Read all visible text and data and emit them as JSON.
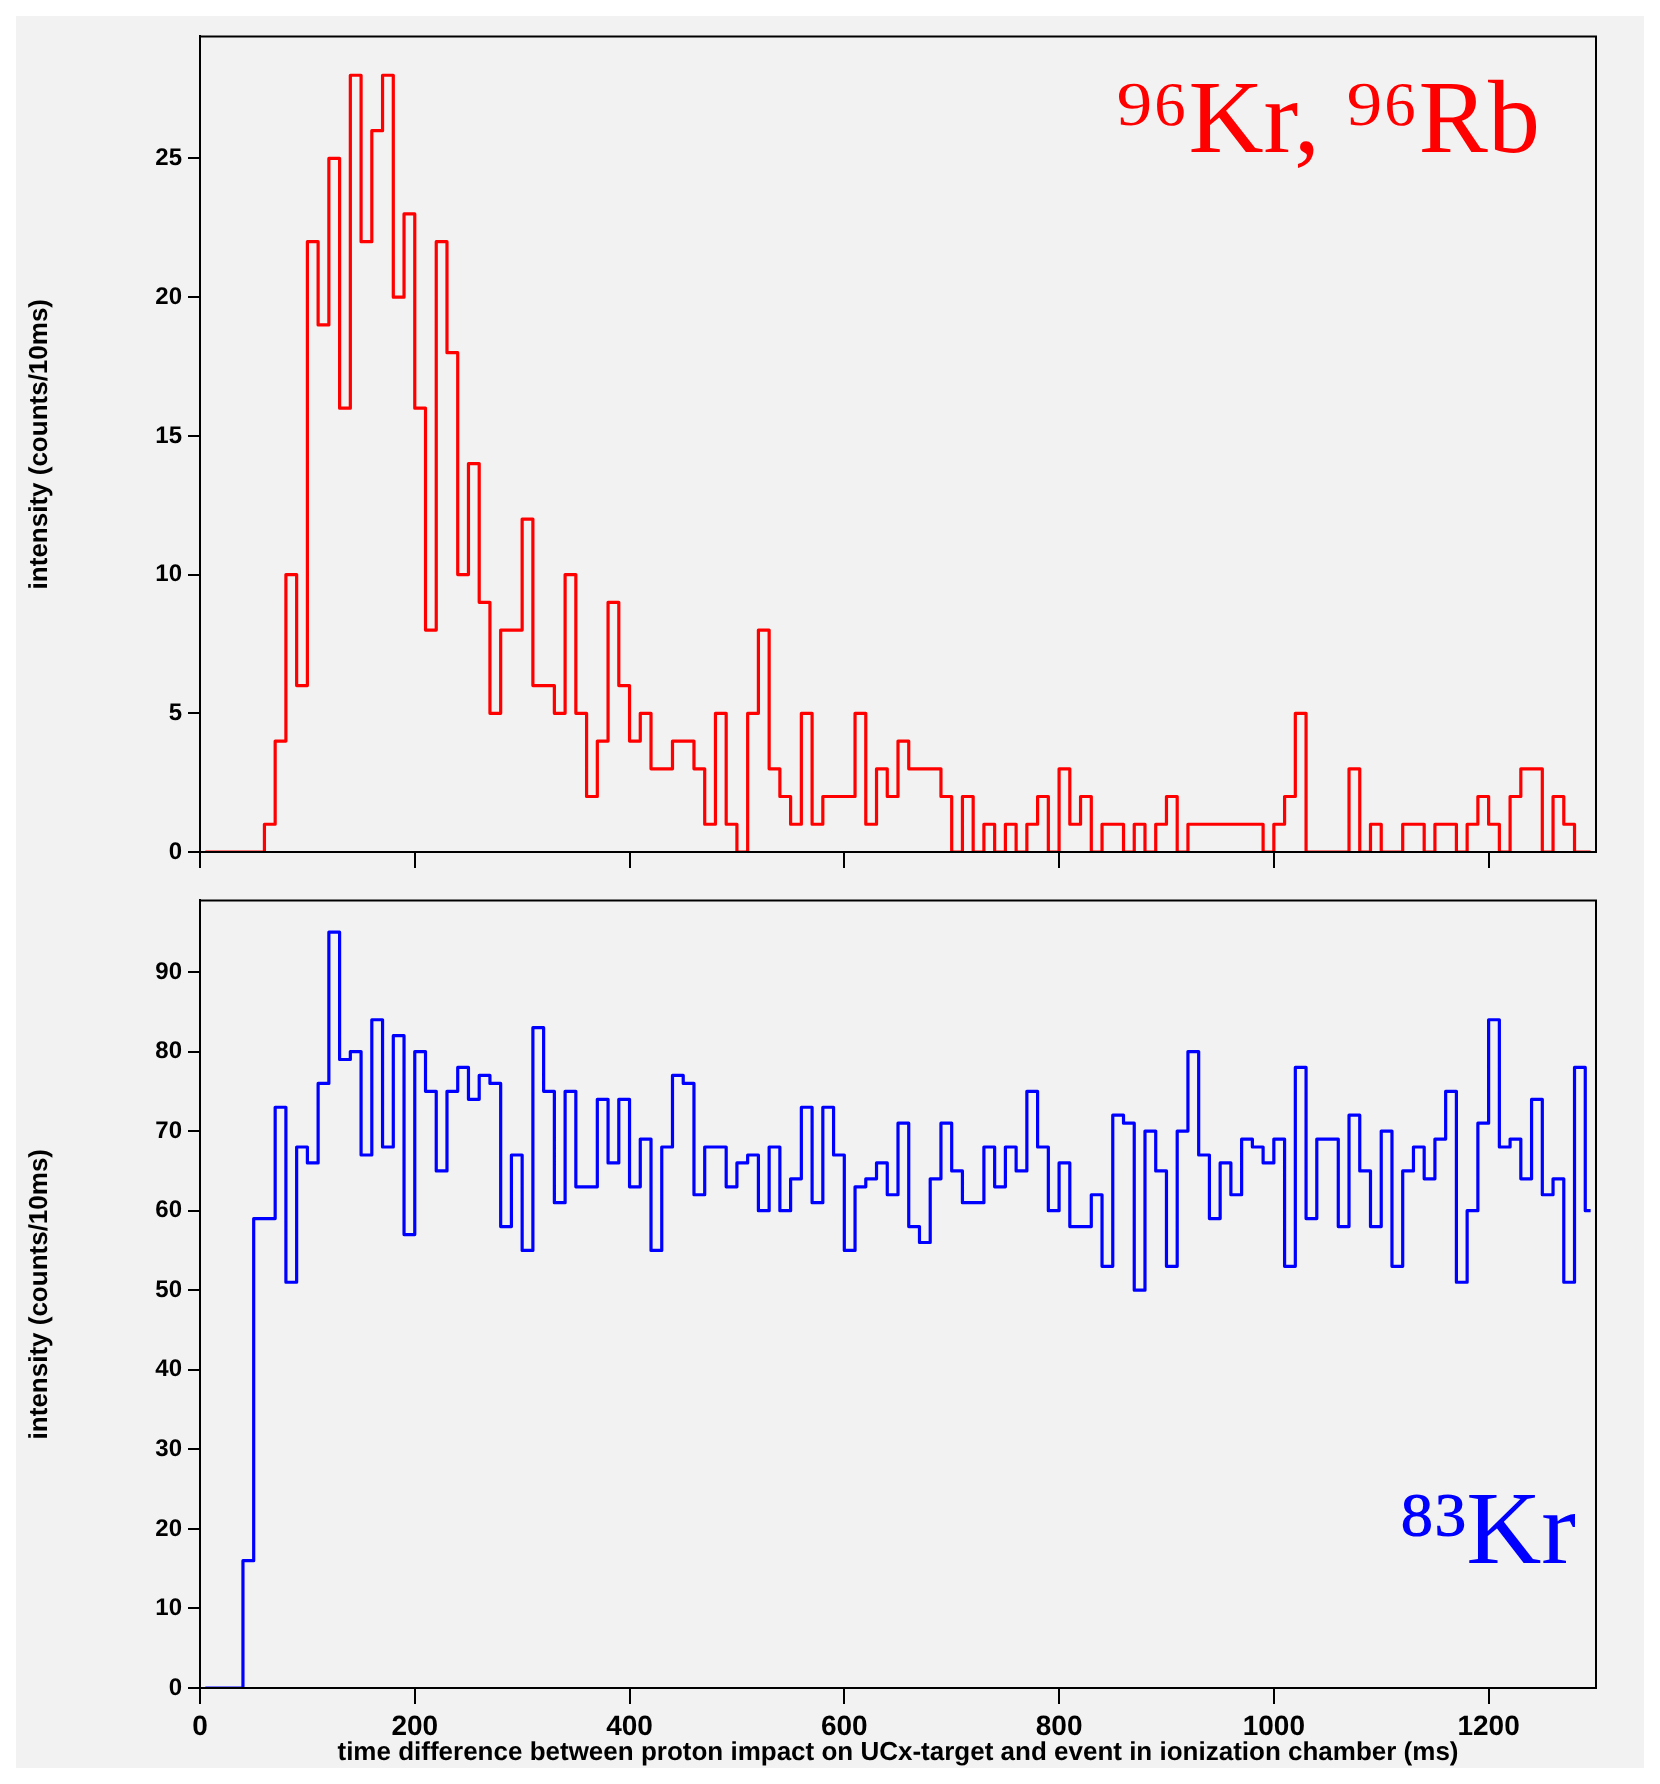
{
  "chart_data": [
    {
      "type": "histogram",
      "ylabel": "intensity (counts/10ms)",
      "color": "#ff0000",
      "annotations": [
        "⁹⁶Kr, ⁹⁶Rb"
      ],
      "tick_labels": "y",
      "grid": false,
      "bins": [
        0,
        10,
        20,
        30,
        40,
        50,
        60,
        70,
        80,
        90,
        100,
        110,
        120,
        130,
        140,
        150,
        160,
        170,
        180,
        190,
        200,
        210,
        220,
        230,
        240,
        250,
        260,
        270,
        280,
        290,
        300,
        310,
        320,
        330,
        340,
        350,
        360,
        370,
        380,
        390,
        400,
        410,
        420,
        430,
        440,
        450,
        460,
        470,
        480,
        490,
        500,
        510,
        520,
        530,
        540,
        550,
        560,
        570,
        580,
        590,
        600,
        610,
        620,
        630,
        640,
        650,
        660,
        670,
        680,
        690,
        700,
        710,
        720,
        730,
        740,
        750,
        760,
        770,
        780,
        790,
        800,
        810,
        820,
        830,
        840,
        850,
        860,
        870,
        880,
        890,
        900,
        910,
        920,
        930,
        940,
        950,
        960,
        970,
        980,
        990,
        1000,
        1010,
        1020,
        1030,
        1040,
        1050,
        1060,
        1070,
        1080,
        1090,
        1100,
        1110,
        1120,
        1130,
        1140,
        1150,
        1160,
        1170,
        1180,
        1190,
        1200,
        1210,
        1220,
        1230,
        1240,
        1250,
        1260,
        1270,
        1280,
        1290,
        1300
      ],
      "values": [
        0,
        0,
        0,
        0,
        0,
        0,
        1,
        4,
        10,
        6,
        22,
        19,
        25,
        16,
        28,
        22,
        26,
        28,
        20,
        23,
        16,
        8,
        22,
        18,
        10,
        14,
        9,
        5,
        8,
        8,
        12,
        6,
        6,
        5,
        10,
        5,
        2,
        4,
        9,
        6,
        4,
        5,
        3,
        3,
        4,
        4,
        3,
        1,
        5,
        1,
        0,
        5,
        8,
        3,
        2,
        1,
        5,
        1,
        2,
        2,
        2,
        5,
        1,
        3,
        2,
        4,
        3,
        3,
        3,
        2,
        0,
        2,
        0,
        1,
        0,
        1,
        0,
        1,
        2,
        0,
        3,
        1,
        2,
        0,
        1,
        1,
        0,
        1,
        0,
        1,
        2,
        0,
        1,
        1,
        1,
        1,
        1,
        1,
        1,
        0,
        1,
        2,
        5,
        0,
        0,
        0,
        0,
        3,
        0,
        1,
        0,
        0,
        1,
        1,
        0,
        1,
        1,
        0,
        1,
        2,
        1,
        0,
        2,
        3,
        3,
        0,
        2,
        1,
        0,
        0
      ],
      "xlim": [
        0,
        1300
      ],
      "xticks": [
        0,
        200,
        400,
        600,
        800,
        1000,
        1200
      ],
      "ylim": [
        0,
        29.4
      ],
      "yticks": [
        0,
        5,
        10,
        15,
        20,
        25
      ]
    },
    {
      "type": "histogram",
      "ylabel": "intensity (counts/10ms)",
      "xlabel": "time difference between proton impact on UCx-target and event in ionization chamber (ms)",
      "color": "#0000ff",
      "annotations": [
        "⁸³Kr"
      ],
      "grid": false,
      "bins": [
        0,
        10,
        20,
        30,
        40,
        50,
        60,
        70,
        80,
        90,
        100,
        110,
        120,
        130,
        140,
        150,
        160,
        170,
        180,
        190,
        200,
        210,
        220,
        230,
        240,
        250,
        260,
        270,
        280,
        290,
        300,
        310,
        320,
        330,
        340,
        350,
        360,
        370,
        380,
        390,
        400,
        410,
        420,
        430,
        440,
        450,
        460,
        470,
        480,
        490,
        500,
        510,
        520,
        530,
        540,
        550,
        560,
        570,
        580,
        590,
        600,
        610,
        620,
        630,
        640,
        650,
        660,
        670,
        680,
        690,
        700,
        710,
        720,
        730,
        740,
        750,
        760,
        770,
        780,
        790,
        800,
        810,
        820,
        830,
        840,
        850,
        860,
        870,
        880,
        890,
        900,
        910,
        920,
        930,
        940,
        950,
        960,
        970,
        980,
        990,
        1000,
        1010,
        1020,
        1030,
        1040,
        1050,
        1060,
        1070,
        1080,
        1090,
        1100,
        1110,
        1120,
        1130,
        1140,
        1150,
        1160,
        1170,
        1180,
        1190,
        1200,
        1210,
        1220,
        1230,
        1240,
        1250,
        1260,
        1270,
        1280,
        1290,
        1300
      ],
      "values": [
        0,
        0,
        0,
        0,
        16,
        59,
        59,
        73,
        51,
        68,
        66,
        76,
        95,
        79,
        80,
        67,
        84,
        68,
        82,
        57,
        80,
        75,
        65,
        75,
        78,
        74,
        77,
        76,
        58,
        67,
        55,
        83,
        75,
        61,
        75,
        63,
        63,
        74,
        66,
        74,
        63,
        69,
        55,
        68,
        77,
        76,
        62,
        68,
        68,
        63,
        66,
        67,
        60,
        68,
        60,
        64,
        73,
        61,
        73,
        67,
        55,
        63,
        64,
        66,
        62,
        71,
        58,
        56,
        64,
        71,
        65,
        61,
        61,
        68,
        63,
        68,
        65,
        75,
        68,
        60,
        66,
        58,
        58,
        62,
        53,
        72,
        71,
        50,
        70,
        65,
        53,
        70,
        80,
        67,
        59,
        66,
        62,
        69,
        68,
        66,
        69,
        53,
        78,
        59,
        69,
        69,
        58,
        72,
        65,
        58,
        70,
        53,
        65,
        68,
        64,
        69,
        75,
        51,
        60,
        71,
        84,
        68,
        69,
        64,
        74,
        62,
        64,
        51,
        78,
        60
      ],
      "xlim": [
        0,
        1300
      ],
      "xticks": [
        0,
        200,
        400,
        600,
        800,
        1000,
        1200
      ],
      "ylim": [
        0,
        99
      ],
      "yticks": [
        0,
        10,
        20,
        30,
        40,
        50,
        60,
        70,
        80,
        90
      ]
    }
  ]
}
